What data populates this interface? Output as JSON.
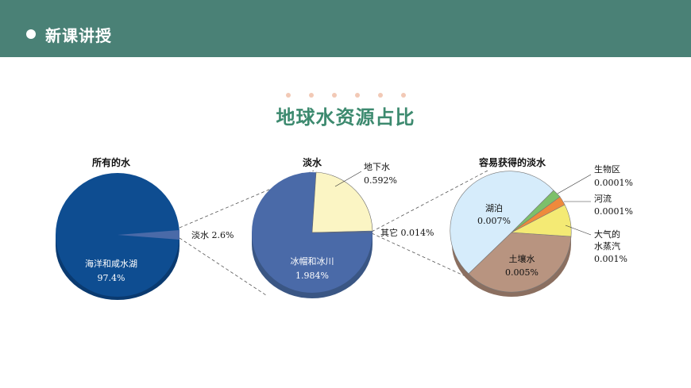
{
  "header": {
    "title": "新课讲授",
    "color": "#4a8176"
  },
  "main_title": "地球水资源占比",
  "colors": {
    "title_green": "#3d8a6f",
    "navy": "#0e4d91",
    "slate_blue": "#4a6aa8",
    "pale_yellow": "#fbf5c4",
    "light_blue": "#d6ecfb",
    "brown": "#b89480",
    "green": "#7cc06a",
    "orange": "#ee8a3c",
    "yellow": "#f4ea74"
  },
  "chart_data": [
    {
      "type": "pie",
      "title": "所有的水",
      "slices": [
        {
          "label": "海洋和咸水湖",
          "value_text": "97.4%",
          "value": 97.4
        },
        {
          "label": "淡水",
          "value_text": "2.6%",
          "value": 2.6
        }
      ]
    },
    {
      "type": "pie",
      "title": "淡水",
      "slices": [
        {
          "label": "冰帽和冰川",
          "value_text": "1.984%",
          "value": 1.984
        },
        {
          "label": "地下水",
          "value_text": "0.592%",
          "value": 0.592
        },
        {
          "label": "其它",
          "value_text": "0.014%",
          "value": 0.014
        }
      ]
    },
    {
      "type": "pie",
      "title": "容易获得的淡水",
      "slices": [
        {
          "label": "湖泊",
          "value_text": "0.007%",
          "value": 0.007
        },
        {
          "label": "土壤水",
          "value_text": "0.005%",
          "value": 0.005
        },
        {
          "label": "大气的水蒸汽",
          "label_line1": "大气的",
          "label_line2": "水蒸汽",
          "value_text": "0.001%",
          "value": 0.001
        },
        {
          "label": "河流",
          "value_text": "0.0001%",
          "value": 0.0001
        },
        {
          "label": "生物区",
          "value_text": "0.0001%",
          "value": 0.0001
        }
      ]
    }
  ]
}
